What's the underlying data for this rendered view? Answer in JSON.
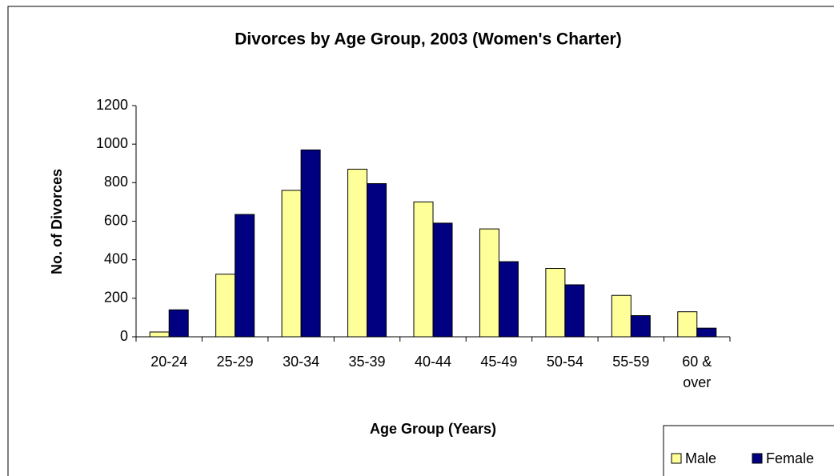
{
  "chart_data": {
    "type": "bar",
    "title": "Divorces by Age Group, 2003 (Women's Charter)",
    "x_label": "Age Group (Years)",
    "y_label": "No. of Divorces",
    "categories": [
      "20-24",
      "25-29",
      "30-34",
      "35-39",
      "40-44",
      "45-49",
      "50-54",
      "55-59",
      "60 & over"
    ],
    "series": [
      {
        "name": "Male",
        "color": "#ffff99",
        "values": [
          25,
          325,
          760,
          870,
          700,
          560,
          355,
          215,
          130
        ]
      },
      {
        "name": "Female",
        "color": "#000080",
        "values": [
          140,
          635,
          970,
          795,
          590,
          390,
          270,
          110,
          45
        ]
      }
    ],
    "ylim": [
      0,
      1200
    ],
    "yticks": [
      0,
      200,
      400,
      600,
      800,
      1000,
      1200
    ],
    "legend": "bottom-right"
  }
}
